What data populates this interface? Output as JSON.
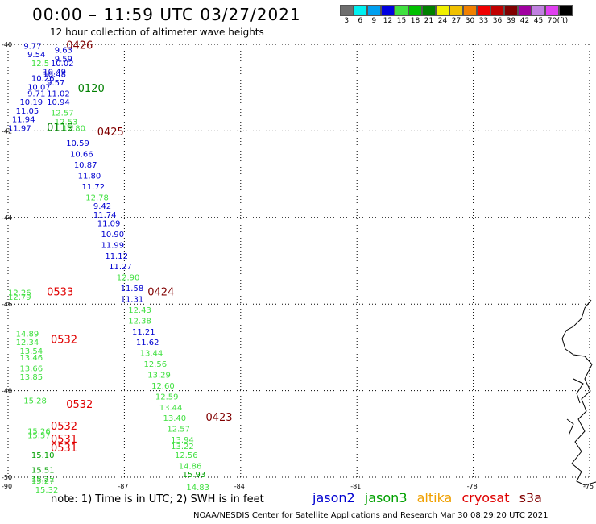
{
  "title": "00:00 – 11:59 UTC 03/27/2021",
  "subtitle": "12 hour collection of altimeter wave heights",
  "scale": {
    "colors": [
      "#6e6e6e",
      "#00f0f0",
      "#00a0f0",
      "#0000e0",
      "#40e040",
      "#00c000",
      "#008000",
      "#f0f000",
      "#f0c000",
      "#f08000",
      "#f00000",
      "#c00000",
      "#800000",
      "#a000a0",
      "#c080e0",
      "#e040f0",
      "#000000"
    ],
    "labels": [
      "3",
      "6",
      "9",
      "12",
      "15",
      "18",
      "21",
      "24",
      "27",
      "30",
      "33",
      "36",
      "39",
      "42",
      "45",
      "70",
      "(ft)"
    ]
  },
  "axes": {
    "lat_labels": [
      "-40",
      "-42",
      "-44",
      "-46",
      "-48",
      "-50"
    ],
    "lon_labels": [
      "-90",
      "-87",
      "-84",
      "-81",
      "-78",
      "-75"
    ]
  },
  "note": "note:  1) Time is in UTC;  2) SWH is in feet",
  "legend": [
    {
      "name": "jason2",
      "color": "#0000d0"
    },
    {
      "name": "jason3",
      "color": "#00a000"
    },
    {
      "name": "altika",
      "color": "#f0a000"
    },
    {
      "name": "cryosat",
      "color": "#e00000"
    },
    {
      "name": "s3a",
      "color": "#800000"
    }
  ],
  "credit": "NOAA/NESDIS Center for Satellite Applications and Research    Mar 30 08:29:20 UTC 2021",
  "chart_data": {
    "type": "scatter",
    "x_axis": "longitude",
    "y_axis": "latitude",
    "xlim": [
      -90,
      -75
    ],
    "ylim": [
      -50,
      -40
    ],
    "passes": [
      {
        "time": "0426",
        "lon": -88.5,
        "lat": -40.1,
        "color": "#800000"
      },
      {
        "time": "0120",
        "lon": -88.2,
        "lat": -41.1,
        "color": "#008000"
      },
      {
        "time": "0119",
        "lon": -89.0,
        "lat": -42.0,
        "color": "#008000"
      },
      {
        "time": "0425",
        "lon": -87.7,
        "lat": -42.1,
        "color": "#800000"
      },
      {
        "time": "0533",
        "lon": -89.0,
        "lat": -45.8,
        "color": "#e00000"
      },
      {
        "time": "0424",
        "lon": -86.4,
        "lat": -45.8,
        "color": "#800000"
      },
      {
        "time": "0532",
        "lon": -88.9,
        "lat": -46.9,
        "color": "#e00000"
      },
      {
        "time": "0532",
        "lon": -88.5,
        "lat": -48.4,
        "color": "#e00000"
      },
      {
        "time": "0532",
        "lon": -88.9,
        "lat": -48.9,
        "color": "#e00000"
      },
      {
        "time": "0423",
        "lon": -84.9,
        "lat": -48.7,
        "color": "#800000"
      },
      {
        "time": "0531",
        "lon": -88.9,
        "lat": -49.2,
        "color": "#e00000"
      },
      {
        "time": "0531",
        "lon": -88.9,
        "lat": -49.4,
        "color": "#e00000"
      }
    ],
    "points": [
      {
        "v": "9.77",
        "lon": -89.6,
        "lat": -40.1,
        "color": "#0000d0"
      },
      {
        "v": "9.63",
        "lon": -88.8,
        "lat": -40.2,
        "color": "#0000d0"
      },
      {
        "v": "9.54",
        "lon": -89.5,
        "lat": -40.3,
        "color": "#0000d0"
      },
      {
        "v": "9.59",
        "lon": -88.8,
        "lat": -40.4,
        "color": "#0000d0"
      },
      {
        "v": "12.5",
        "lon": -89.4,
        "lat": -40.5,
        "color": "#40e040"
      },
      {
        "v": "10.02",
        "lon": -88.9,
        "lat": -40.5,
        "color": "#0000d0"
      },
      {
        "v": "10.49",
        "lon": -89.1,
        "lat": -40.7,
        "color": "#0000d0"
      },
      {
        "v": "10.48",
        "lon": -89.1,
        "lat": -40.75,
        "color": "#0000d0"
      },
      {
        "v": "10.26",
        "lon": -89.4,
        "lat": -40.85,
        "color": "#0000d0"
      },
      {
        "v": "9.57",
        "lon": -89.0,
        "lat": -40.95,
        "color": "#0000d0"
      },
      {
        "v": "10.07",
        "lon": -89.5,
        "lat": -41.05,
        "color": "#0000d0"
      },
      {
        "v": "9.71",
        "lon": -89.5,
        "lat": -41.2,
        "color": "#0000d0"
      },
      {
        "v": "11.02",
        "lon": -89.0,
        "lat": -41.2,
        "color": "#0000d0"
      },
      {
        "v": "10.19",
        "lon": -89.7,
        "lat": -41.4,
        "color": "#0000d0"
      },
      {
        "v": "10.94",
        "lon": -89.0,
        "lat": -41.4,
        "color": "#0000d0"
      },
      {
        "v": "11.05",
        "lon": -89.8,
        "lat": -41.6,
        "color": "#0000d0"
      },
      {
        "v": "12.57",
        "lon": -88.9,
        "lat": -41.65,
        "color": "#40e040"
      },
      {
        "v": "11.94",
        "lon": -89.9,
        "lat": -41.8,
        "color": "#0000d0"
      },
      {
        "v": "12.53",
        "lon": -88.8,
        "lat": -41.85,
        "color": "#40e040"
      },
      {
        "v": "11.97",
        "lon": -90.0,
        "lat": -42.0,
        "color": "#0000d0"
      },
      {
        "v": "12.80",
        "lon": -88.6,
        "lat": -42.0,
        "color": "#40e040"
      },
      {
        "v": "10.59",
        "lon": -88.5,
        "lat": -42.35,
        "color": "#0000d0"
      },
      {
        "v": "10.66",
        "lon": -88.4,
        "lat": -42.6,
        "color": "#0000d0"
      },
      {
        "v": "10.87",
        "lon": -88.3,
        "lat": -42.85,
        "color": "#0000d0"
      },
      {
        "v": "11.80",
        "lon": -88.2,
        "lat": -43.1,
        "color": "#0000d0"
      },
      {
        "v": "11.72",
        "lon": -88.1,
        "lat": -43.35,
        "color": "#0000d0"
      },
      {
        "v": "12.78",
        "lon": -88.0,
        "lat": -43.6,
        "color": "#40e040"
      },
      {
        "v": "9.42",
        "lon": -87.8,
        "lat": -43.8,
        "color": "#0000d0"
      },
      {
        "v": "11.74",
        "lon": -87.8,
        "lat": -44.0,
        "color": "#0000d0"
      },
      {
        "v": "11.09",
        "lon": -87.7,
        "lat": -44.2,
        "color": "#0000d0"
      },
      {
        "v": "10.90",
        "lon": -87.6,
        "lat": -44.45,
        "color": "#0000d0"
      },
      {
        "v": "11.99",
        "lon": -87.6,
        "lat": -44.7,
        "color": "#0000d0"
      },
      {
        "v": "11.12",
        "lon": -87.5,
        "lat": -44.95,
        "color": "#0000d0"
      },
      {
        "v": "11.27",
        "lon": -87.4,
        "lat": -45.2,
        "color": "#0000d0"
      },
      {
        "v": "12.90",
        "lon": -87.2,
        "lat": -45.45,
        "color": "#40e040"
      },
      {
        "v": "11.58",
        "lon": -87.1,
        "lat": -45.7,
        "color": "#0000d0"
      },
      {
        "v": "11.31",
        "lon": -87.1,
        "lat": -45.95,
        "color": "#0000d0"
      },
      {
        "v": "12.43",
        "lon": -86.9,
        "lat": -46.2,
        "color": "#40e040"
      },
      {
        "v": "12.38",
        "lon": -86.9,
        "lat": -46.45,
        "color": "#40e040"
      },
      {
        "v": "11.21",
        "lon": -86.8,
        "lat": -46.7,
        "color": "#0000d0"
      },
      {
        "v": "11.62",
        "lon": -86.7,
        "lat": -46.95,
        "color": "#0000d0"
      },
      {
        "v": "13.44",
        "lon": -86.6,
        "lat": -47.2,
        "color": "#40e040"
      },
      {
        "v": "12.56",
        "lon": -86.5,
        "lat": -47.45,
        "color": "#40e040"
      },
      {
        "v": "13.29",
        "lon": -86.4,
        "lat": -47.7,
        "color": "#40e040"
      },
      {
        "v": "12.60",
        "lon": -86.3,
        "lat": -47.95,
        "color": "#40e040"
      },
      {
        "v": "12.59",
        "lon": -86.2,
        "lat": -48.2,
        "color": "#40e040"
      },
      {
        "v": "13.44",
        "lon": -86.1,
        "lat": -48.45,
        "color": "#40e040"
      },
      {
        "v": "13.40",
        "lon": -86.0,
        "lat": -48.7,
        "color": "#40e040"
      },
      {
        "v": "12.57",
        "lon": -85.9,
        "lat": -48.95,
        "color": "#40e040"
      },
      {
        "v": "13.94",
        "lon": -85.8,
        "lat": -49.2,
        "color": "#40e040"
      },
      {
        "v": "13.22",
        "lon": -85.8,
        "lat": -49.35,
        "color": "#40e040"
      },
      {
        "v": "12.56",
        "lon": -85.7,
        "lat": -49.55,
        "color": "#40e040"
      },
      {
        "v": "14.86",
        "lon": -85.6,
        "lat": -49.8,
        "color": "#40e040"
      },
      {
        "v": "15.93",
        "lon": -85.5,
        "lat": -50.0,
        "color": "#00a000"
      },
      {
        "v": "14.83",
        "lon": -85.4,
        "lat": -50.3,
        "color": "#40e040"
      },
      {
        "v": "12.26",
        "lon": -90.0,
        "lat": -45.8,
        "color": "#40e040"
      },
      {
        "v": "12.79",
        "lon": -90.0,
        "lat": -45.9,
        "color": "#40e040"
      },
      {
        "v": "14.89",
        "lon": -89.8,
        "lat": -46.75,
        "color": "#40e040"
      },
      {
        "v": "12.34",
        "lon": -89.8,
        "lat": -46.95,
        "color": "#40e040"
      },
      {
        "v": "13.54",
        "lon": -89.7,
        "lat": -47.15,
        "color": "#40e040"
      },
      {
        "v": "13.46",
        "lon": -89.7,
        "lat": -47.3,
        "color": "#40e040"
      },
      {
        "v": "13.66",
        "lon": -89.7,
        "lat": -47.55,
        "color": "#40e040"
      },
      {
        "v": "13.85",
        "lon": -89.7,
        "lat": -47.75,
        "color": "#40e040"
      },
      {
        "v": "15.28",
        "lon": -89.6,
        "lat": -48.3,
        "color": "#40e040"
      },
      {
        "v": "15.26",
        "lon": -89.5,
        "lat": -49.0,
        "color": "#40e040"
      },
      {
        "v": "15.57",
        "lon": -89.5,
        "lat": -49.1,
        "color": "#40e040"
      },
      {
        "v": "15.10",
        "lon": -89.4,
        "lat": -49.55,
        "color": "#00a000"
      },
      {
        "v": "15.51",
        "lon": -89.4,
        "lat": -49.9,
        "color": "#00a000"
      },
      {
        "v": "15.21",
        "lon": -89.4,
        "lat": -50.1,
        "color": "#00a000"
      },
      {
        "v": "15.27",
        "lon": -89.4,
        "lat": -50.15,
        "color": "#40e040"
      },
      {
        "v": "15.32",
        "lon": -89.3,
        "lat": -50.35,
        "color": "#40e040"
      }
    ]
  }
}
